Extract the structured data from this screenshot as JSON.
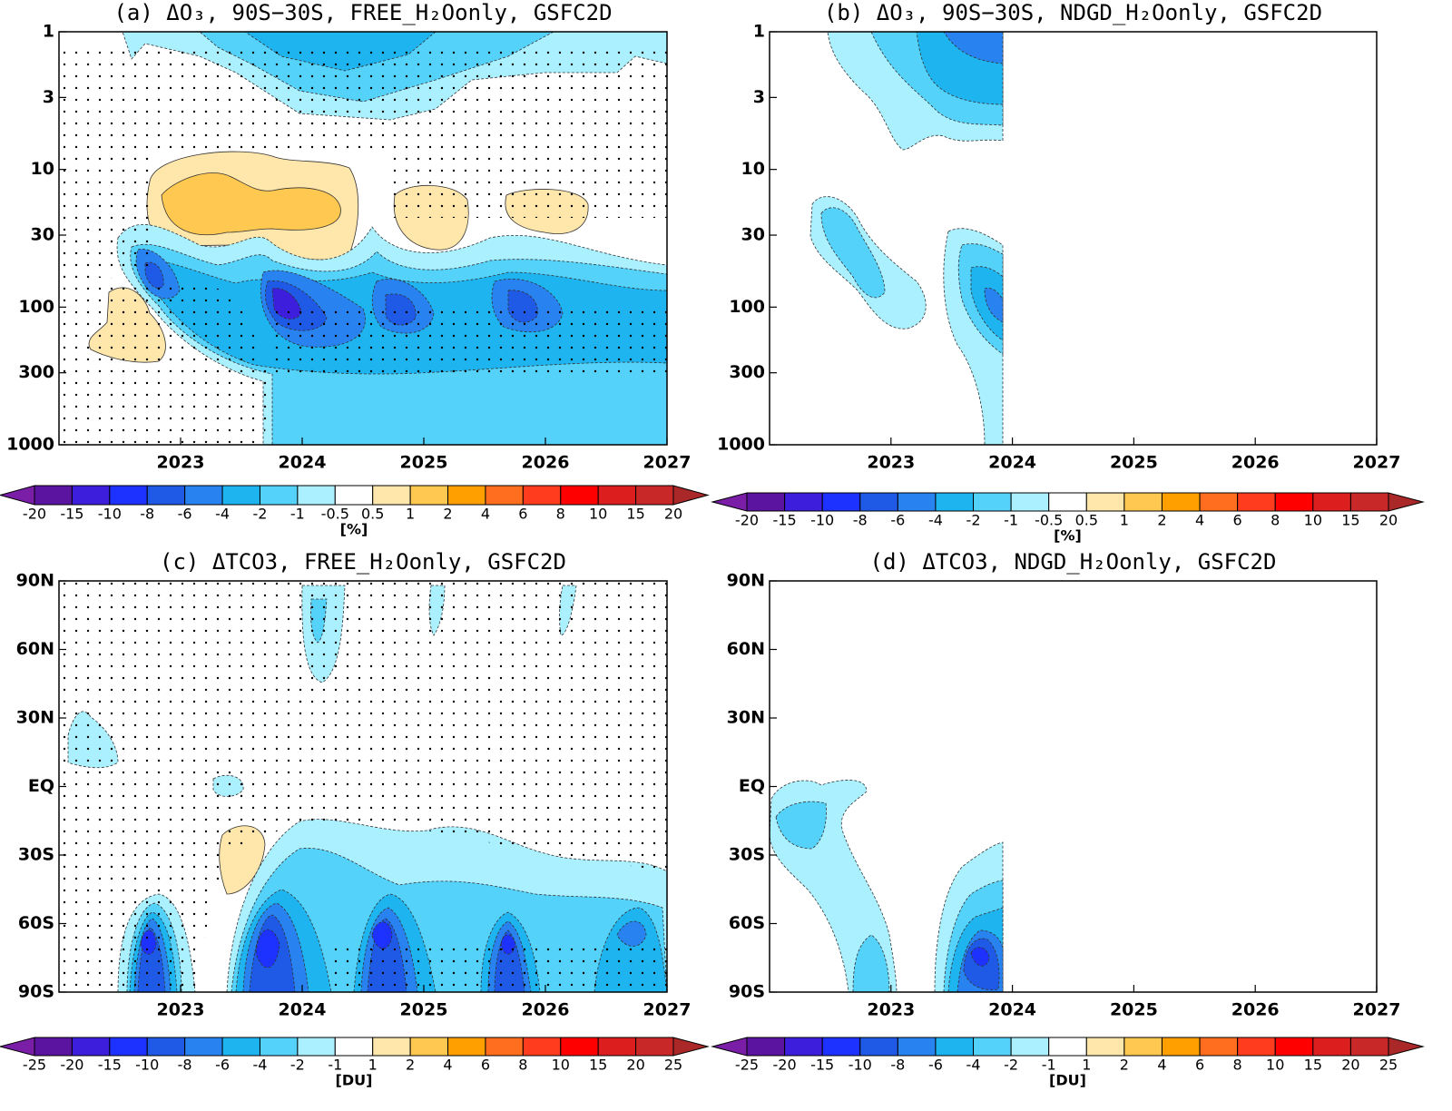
{
  "chart_data": [
    {
      "type": "contour",
      "title": "(a) ΔO₃, 90S−30S, FREE_H₂Oonly, GSFC2D",
      "xlim": [
        2022,
        2027
      ],
      "xticks": [
        2023,
        2024,
        2025,
        2026,
        2027
      ],
      "ylim": [
        1000,
        1
      ],
      "log_y": true,
      "yticks": [
        1,
        3,
        10,
        30,
        100,
        300,
        1000
      ],
      "colorbar": {
        "label": "[%]",
        "levels": [
          -20,
          -15,
          -10,
          -8,
          -6,
          -4,
          -2,
          -1,
          -0.5,
          0.5,
          1,
          2,
          4,
          6,
          8,
          10,
          15,
          20
        ],
        "colors": [
          "#5a14a0",
          "#3c1edc",
          "#1e32ff",
          "#1e5ae6",
          "#2882f0",
          "#1eb4f0",
          "#55d2fa",
          "#aaf0ff",
          "#ffffff",
          "#ffe6aa",
          "#ffc850",
          "#ffa000",
          "#ff6e1e",
          "#ff3c1e",
          "#ff0000",
          "#dc1e1e",
          "#c82828"
        ],
        "extend_colors": [
          "#7a1ea8",
          "#aa2828"
        ]
      }
    },
    {
      "type": "contour",
      "title": "(b) ΔO₃, 90S−30S, NDGD_H₂Oonly, GSFC2D",
      "xlim": [
        2022,
        2027
      ],
      "xticks": [
        2023,
        2024,
        2025,
        2026,
        2027
      ],
      "ylim": [
        1000,
        1
      ],
      "log_y": true,
      "yticks": [
        1,
        3,
        10,
        30,
        100,
        300,
        1000
      ],
      "colorbar": {
        "label": "[%]",
        "levels": [
          -20,
          -15,
          -10,
          -8,
          -6,
          -4,
          -2,
          -1,
          -0.5,
          0.5,
          1,
          2,
          4,
          6,
          8,
          10,
          15,
          20
        ],
        "colors": [
          "#5a14a0",
          "#3c1edc",
          "#1e32ff",
          "#1e5ae6",
          "#2882f0",
          "#1eb4f0",
          "#55d2fa",
          "#aaf0ff",
          "#ffffff",
          "#ffe6aa",
          "#ffc850",
          "#ffa000",
          "#ff6e1e",
          "#ff3c1e",
          "#ff0000",
          "#dc1e1e",
          "#c82828"
        ],
        "extend_colors": [
          "#7a1ea8",
          "#aa2828"
        ]
      }
    },
    {
      "type": "contour",
      "title": "(c) ΔTCO3, FREE_H₂Oonly, GSFC2D",
      "xlim": [
        2022,
        2027
      ],
      "xticks": [
        2023,
        2024,
        2025,
        2026,
        2027
      ],
      "ylim": [
        -90,
        90
      ],
      "log_y": false,
      "yticks": [
        {
          "value": 90,
          "label": "90N"
        },
        {
          "value": 60,
          "label": "60N"
        },
        {
          "value": 30,
          "label": "30N"
        },
        {
          "value": 0,
          "label": "EQ"
        },
        {
          "value": -30,
          "label": "30S"
        },
        {
          "value": -60,
          "label": "60S"
        },
        {
          "value": -90,
          "label": "90S"
        }
      ],
      "colorbar": {
        "label": "[DU]",
        "levels": [
          -25,
          -20,
          -15,
          -10,
          -8,
          -6,
          -4,
          -2,
          -1,
          1,
          2,
          4,
          6,
          8,
          10,
          15,
          20,
          25
        ],
        "colors": [
          "#5a14a0",
          "#3c1edc",
          "#1e32ff",
          "#1e5ae6",
          "#2882f0",
          "#1eb4f0",
          "#55d2fa",
          "#aaf0ff",
          "#ffffff",
          "#ffe6aa",
          "#ffc850",
          "#ffa000",
          "#ff6e1e",
          "#ff3c1e",
          "#ff0000",
          "#dc1e1e",
          "#c82828"
        ],
        "extend_colors": [
          "#7a1ea8",
          "#aa2828"
        ]
      }
    },
    {
      "type": "contour",
      "title": "(d) ΔTCO3, NDGD_H₂Oonly, GSFC2D",
      "xlim": [
        2022,
        2027
      ],
      "xticks": [
        2023,
        2024,
        2025,
        2026,
        2027
      ],
      "ylim": [
        -90,
        90
      ],
      "log_y": false,
      "yticks": [
        {
          "value": 90,
          "label": "90N"
        },
        {
          "value": 60,
          "label": "60N"
        },
        {
          "value": 30,
          "label": "30N"
        },
        {
          "value": 0,
          "label": "EQ"
        },
        {
          "value": -30,
          "label": "30S"
        },
        {
          "value": -60,
          "label": "60S"
        },
        {
          "value": -90,
          "label": "90S"
        }
      ],
      "colorbar": {
        "label": "[DU]",
        "levels": [
          -25,
          -20,
          -15,
          -10,
          -8,
          -6,
          -4,
          -2,
          -1,
          1,
          2,
          4,
          6,
          8,
          10,
          15,
          20,
          25
        ],
        "colors": [
          "#5a14a0",
          "#3c1edc",
          "#1e32ff",
          "#1e5ae6",
          "#2882f0",
          "#1eb4f0",
          "#55d2fa",
          "#aaf0ff",
          "#ffffff",
          "#ffe6aa",
          "#ffc850",
          "#ffa000",
          "#ff6e1e",
          "#ff3c1e",
          "#ff0000",
          "#dc1e1e",
          "#c82828"
        ],
        "extend_colors": [
          "#7a1ea8",
          "#aa2828"
        ]
      }
    }
  ]
}
